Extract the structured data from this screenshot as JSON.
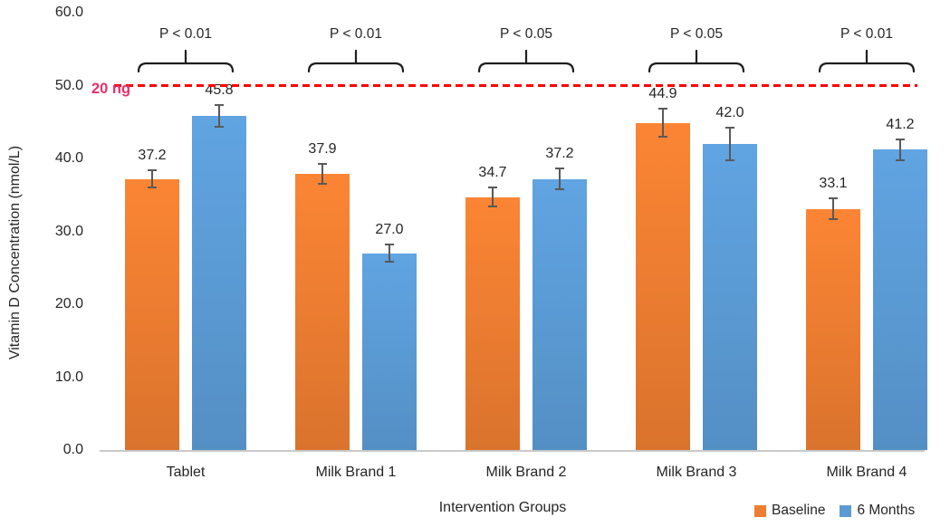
{
  "chart_data": {
    "type": "bar",
    "title": "",
    "xlabel": "Intervention Groups",
    "ylabel": "Vitamin D Concentration (nmol/L)",
    "ylim": [
      0,
      60
    ],
    "ytick_labels": [
      "60.0",
      "50.0",
      "40.0",
      "30.0",
      "20.0",
      "10.0",
      "0.0"
    ],
    "grid": false,
    "categories": [
      "Tablet",
      "Milk Brand 1",
      "Milk Brand 2",
      "Milk Brand 3",
      "Milk Brand 4"
    ],
    "series": [
      {
        "name": "Baseline",
        "color": "#ED7D31",
        "values": [
          37.2,
          37.9,
          34.7,
          44.9,
          33.1
        ],
        "errors": [
          1.2,
          1.4,
          1.3,
          1.9,
          1.4
        ]
      },
      {
        "name": "6 Months",
        "color": "#5B9BD5",
        "values": [
          45.8,
          27.0,
          37.2,
          42.0,
          41.2
        ],
        "errors": [
          1.5,
          1.2,
          1.4,
          2.2,
          1.4
        ]
      }
    ],
    "value_label_format": "one_decimal",
    "p_annotations": [
      "P < 0.01",
      "P < 0.01",
      "P < 0.05",
      "P < 0.05",
      "P < 0.01"
    ],
    "reference_line": {
      "value": 50,
      "label": "20 ng",
      "line_color": "#FE0000",
      "label_color": "#E8316B",
      "style": "dashed"
    },
    "legend": {
      "position": "bottom-right",
      "entries": [
        {
          "label": "Baseline",
          "color": "#ED7D31"
        },
        {
          "label": "6 Months",
          "color": "#5B9BD5"
        }
      ]
    },
    "text_color": "#262626",
    "error_bar_color": "#595959",
    "bracket_color": "#1f1f1f"
  }
}
